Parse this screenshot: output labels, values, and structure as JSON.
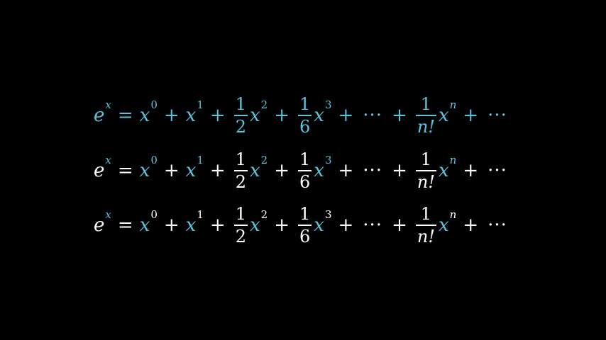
{
  "colors": {
    "background": "#000000",
    "accent_blue": "#58c4dd",
    "text_white": "#ffffff"
  },
  "symbols": {
    "e": "e",
    "x": "x",
    "eq": "=",
    "plus": "+",
    "cdots": "···",
    "exp0": "0",
    "exp1": "1",
    "exp2": "2",
    "exp3": "3",
    "expn": "n",
    "one": "1",
    "den2": "2",
    "den6": "6",
    "dennfact": "n!"
  }
}
